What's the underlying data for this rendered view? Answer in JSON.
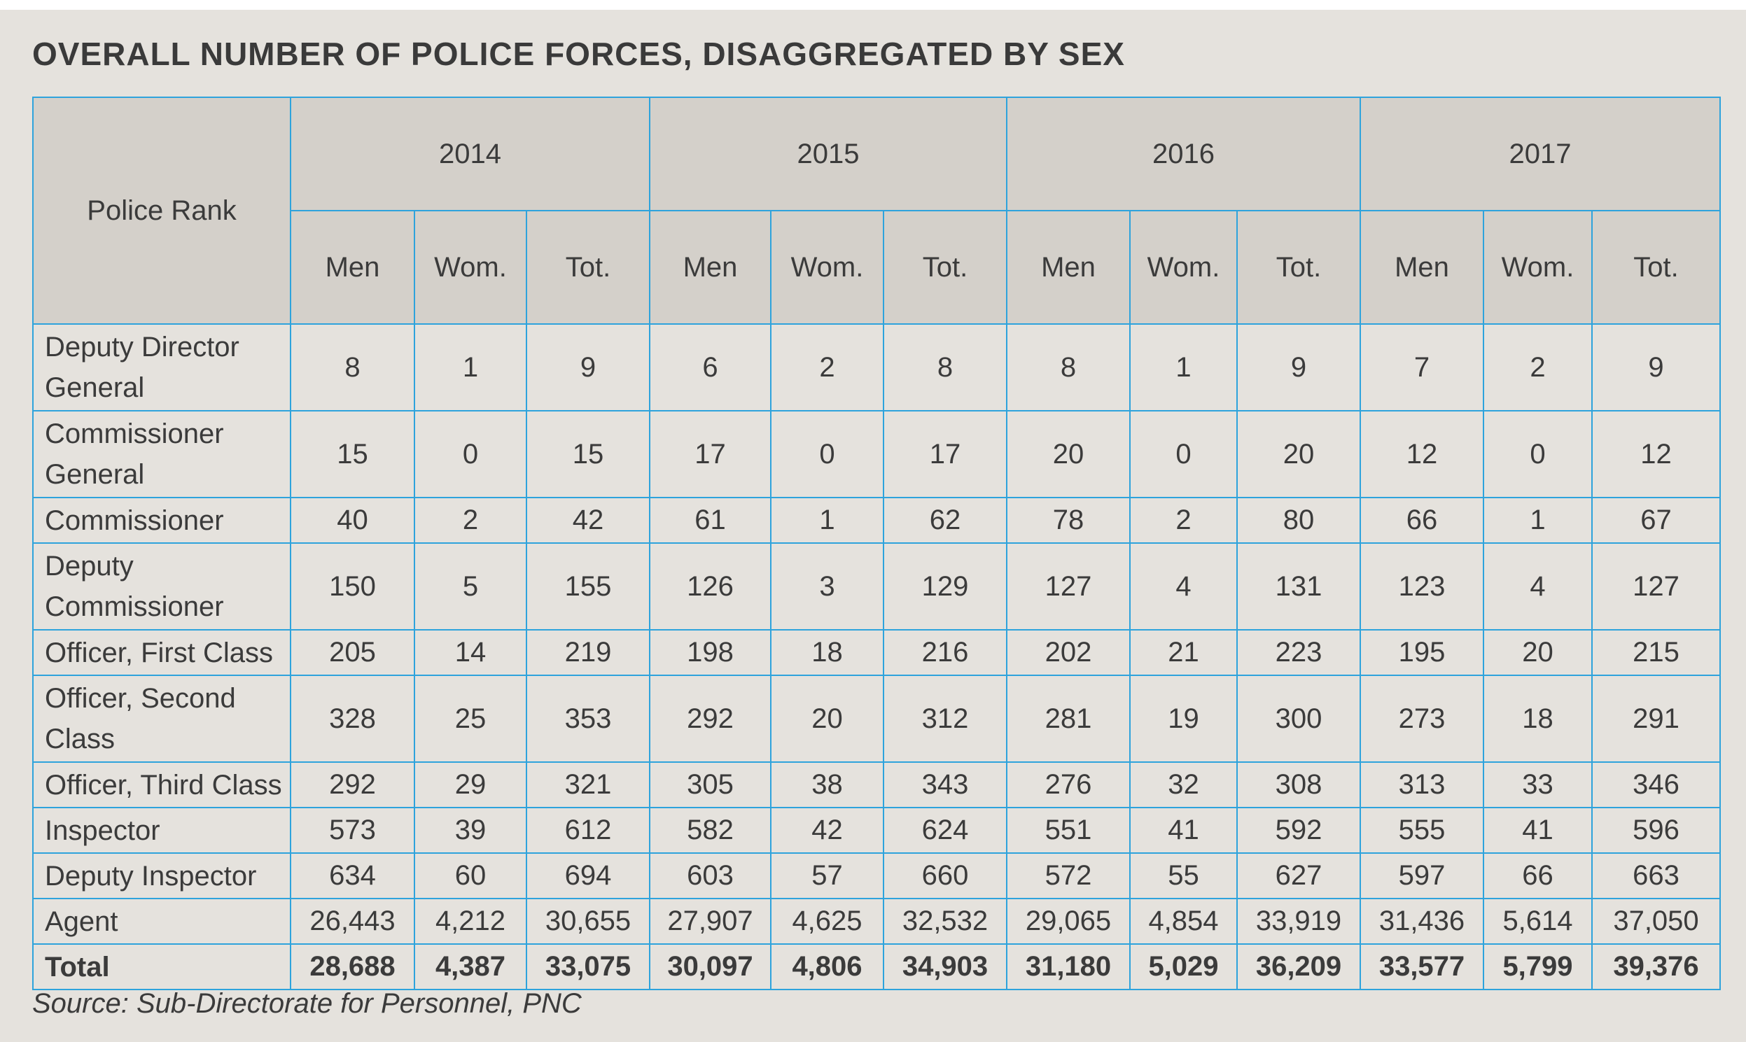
{
  "title": "OVERALL NUMBER OF POLICE FORCES, DISAGGREGATED BY SEX",
  "source": "Source: Sub-Directorate for Personnel, PNC",
  "chart_data": {
    "type": "table",
    "title": "OVERALL NUMBER OF POLICE FORCES, DISAGGREGATED BY SEX",
    "row_header": "Police Rank",
    "years": [
      "2014",
      "2015",
      "2016",
      "2017"
    ],
    "sub_columns": [
      "Men",
      "Wom.",
      "Tot."
    ],
    "rows": [
      {
        "rank": "Deputy Director General",
        "values": [
          "8",
          "1",
          "9",
          "6",
          "2",
          "8",
          "8",
          "1",
          "9",
          "7",
          "2",
          "9"
        ]
      },
      {
        "rank": "Commissioner General",
        "values": [
          "15",
          "0",
          "15",
          "17",
          "0",
          "17",
          "20",
          "0",
          "20",
          "12",
          "0",
          "12"
        ]
      },
      {
        "rank": "Commissioner",
        "values": [
          "40",
          "2",
          "42",
          "61",
          "1",
          "62",
          "78",
          "2",
          "80",
          "66",
          "1",
          "67"
        ]
      },
      {
        "rank": "Deputy Commissioner",
        "values": [
          "150",
          "5",
          "155",
          "126",
          "3",
          "129",
          "127",
          "4",
          "131",
          "123",
          "4",
          "127"
        ]
      },
      {
        "rank": "Officer, First Class",
        "values": [
          "205",
          "14",
          "219",
          "198",
          "18",
          "216",
          "202",
          "21",
          "223",
          "195",
          "20",
          "215"
        ]
      },
      {
        "rank": "Officer, Second Class",
        "values": [
          "328",
          "25",
          "353",
          "292",
          "20",
          "312",
          "281",
          "19",
          "300",
          "273",
          "18",
          "291"
        ]
      },
      {
        "rank": "Officer, Third Class",
        "values": [
          "292",
          "29",
          "321",
          "305",
          "38",
          "343",
          "276",
          "32",
          "308",
          "313",
          "33",
          "346"
        ]
      },
      {
        "rank": "Inspector",
        "values": [
          "573",
          "39",
          "612",
          "582",
          "42",
          "624",
          "551",
          "41",
          "592",
          "555",
          "41",
          "596"
        ]
      },
      {
        "rank": "Deputy Inspector",
        "values": [
          "634",
          "60",
          "694",
          "603",
          "57",
          "660",
          "572",
          "55",
          "627",
          "597",
          "66",
          "663"
        ]
      },
      {
        "rank": "Agent",
        "values": [
          "26,443",
          "4,212",
          "30,655",
          "27,907",
          "4,625",
          "32,532",
          "29,065",
          "4,854",
          "33,919",
          "31,436",
          "5,614",
          "37,050"
        ]
      }
    ],
    "total": {
      "rank": "Total",
      "values": [
        "28,688",
        "4,387",
        "33,075",
        "30,097",
        "4,806",
        "34,903",
        "31,180",
        "5,029",
        "36,209",
        "33,577",
        "5,799",
        "39,376"
      ]
    }
  }
}
